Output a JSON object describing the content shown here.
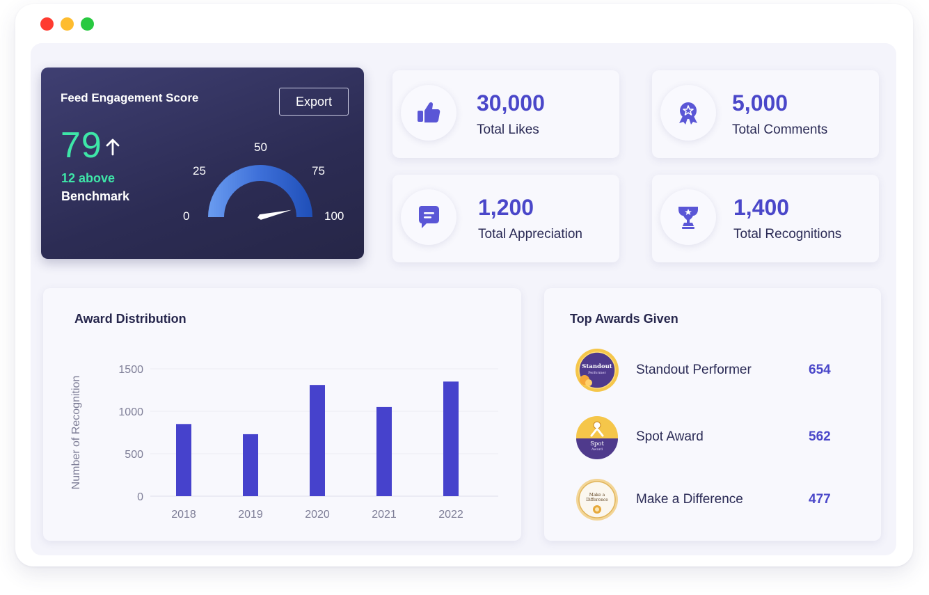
{
  "window": {
    "dot_colors": [
      "#ff3b30",
      "#febc2e",
      "#28c940"
    ]
  },
  "engagement": {
    "title": "Feed Engagement Score",
    "export_label": "Export",
    "score": "79",
    "trend": "up",
    "above_text": "12 above",
    "benchmark_text": "Benchmark",
    "gauge": {
      "ticks": [
        "0",
        "25",
        "50",
        "75",
        "100"
      ],
      "value": 79,
      "min": 0,
      "max": 100
    },
    "accent_color": "#3ee6a8"
  },
  "stats": [
    {
      "icon": "thumbs-up-icon",
      "value": "30,000",
      "label": "Total Likes"
    },
    {
      "icon": "award-ribbon-icon",
      "value": "5,000",
      "label": "Total Comments"
    },
    {
      "icon": "chat-bubble-icon",
      "value": "1,200",
      "label": "Total Appreciation"
    },
    {
      "icon": "trophy-icon",
      "value": "1,400",
      "label": "Total Recognitions"
    }
  ],
  "award_distribution": {
    "title": "Award Distribution",
    "chart_data": {
      "type": "bar",
      "categories": [
        "2018",
        "2019",
        "2020",
        "2021",
        "2022"
      ],
      "values": [
        850,
        730,
        1310,
        1050,
        1350
      ],
      "ylabel": "Number of Recognition",
      "xlabel": "",
      "yticks": [
        0,
        500,
        1000,
        1500
      ],
      "ylim": [
        0,
        1500
      ],
      "grid": true,
      "bar_color": "#4642cc"
    }
  },
  "top_awards": {
    "title": "Top Awards Given",
    "items": [
      {
        "name": "Standout Performer",
        "count": "654",
        "badge_text": "Standout",
        "badge_sub": "Performer"
      },
      {
        "name": "Spot Award",
        "count": "562",
        "badge_text": "Spot",
        "badge_sub": "Award"
      },
      {
        "name": "Make a Difference",
        "count": "477",
        "badge_text": "Make a",
        "badge_sub": "Difference"
      }
    ]
  }
}
